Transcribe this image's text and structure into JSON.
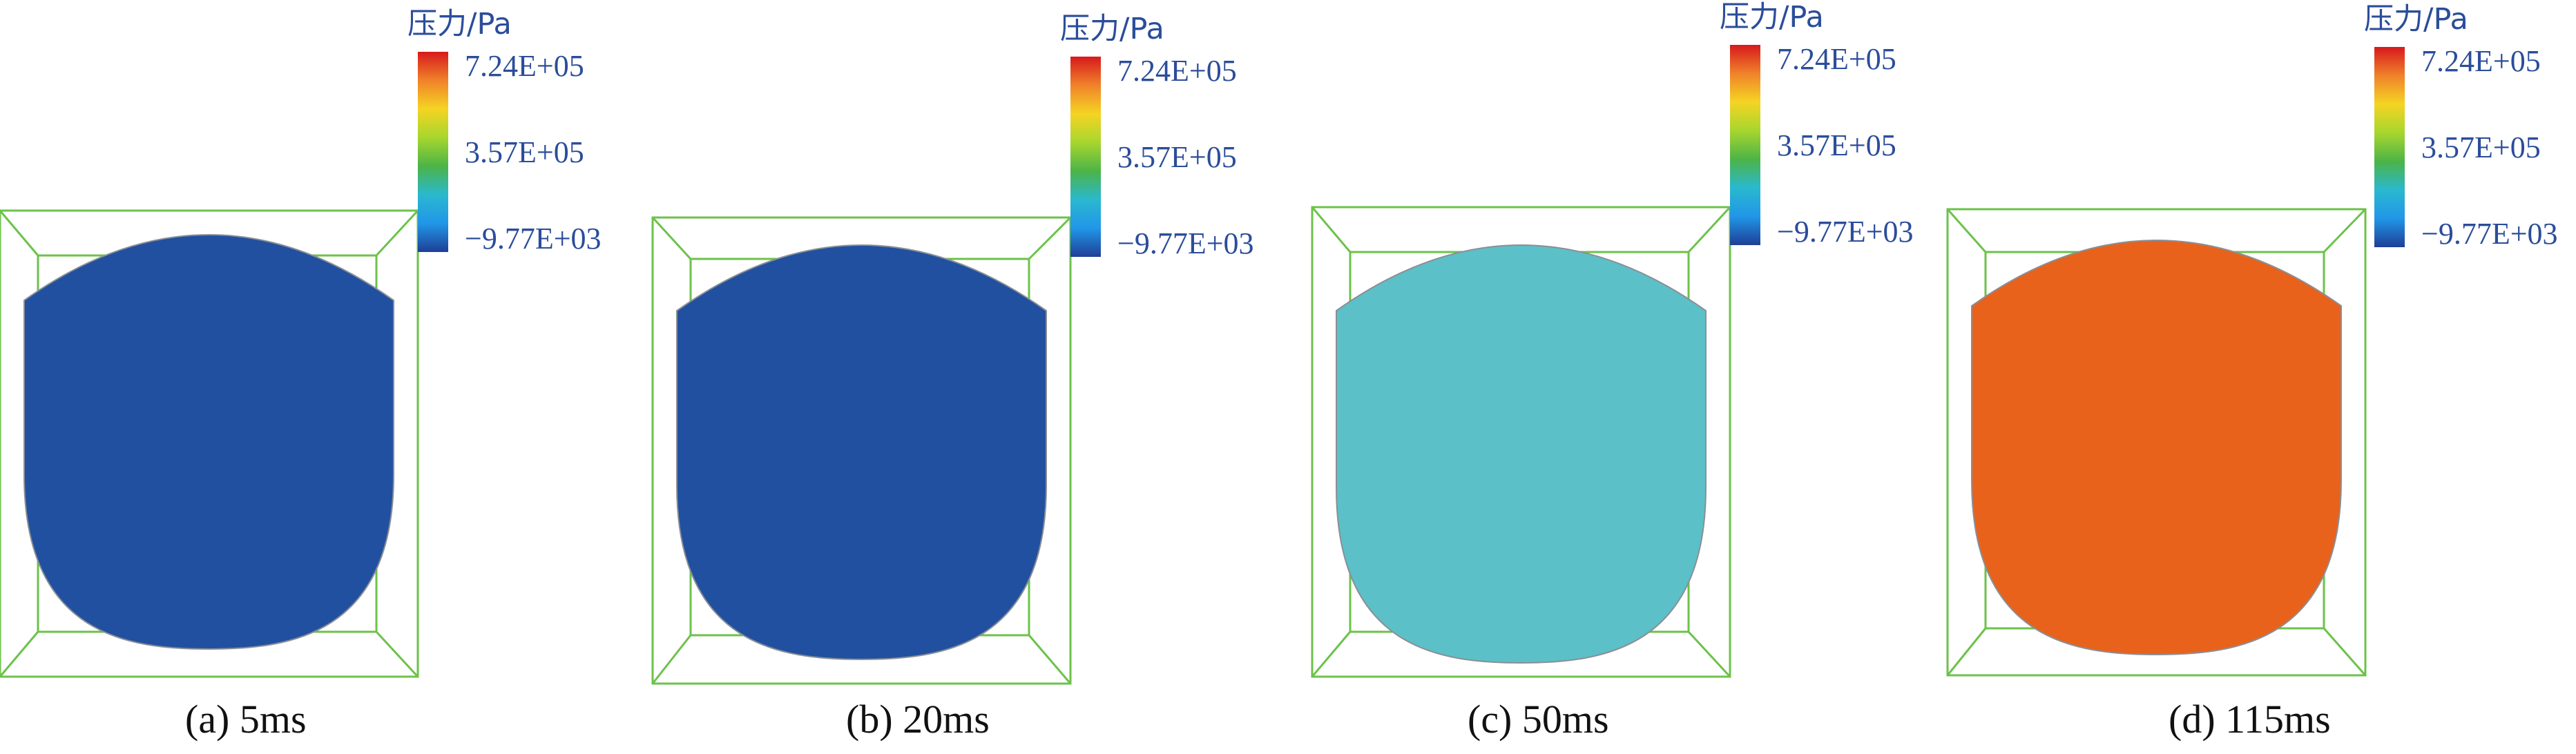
{
  "legend": {
    "title": "压力/Pa",
    "max_label": "7.24E+05",
    "mid_label": "3.57E+05",
    "min_label": "−9.77E+03",
    "scale_colors": [
      "#d7191c",
      "#f0822a",
      "#f5d423",
      "#a7d62e",
      "#4cb447",
      "#2ab8cf",
      "#2196e8",
      "#1e3f96"
    ]
  },
  "box_color": "#6cc24a",
  "panels": [
    {
      "caption": "(a) 5ms",
      "fill_color": "#2150a0"
    },
    {
      "caption": "(b) 20ms",
      "fill_color": "#2150a0"
    },
    {
      "caption": "(c) 50ms",
      "fill_color": "#5cc0c8"
    },
    {
      "caption": "(d) 115ms",
      "fill_color": "#e8621c"
    }
  ]
}
